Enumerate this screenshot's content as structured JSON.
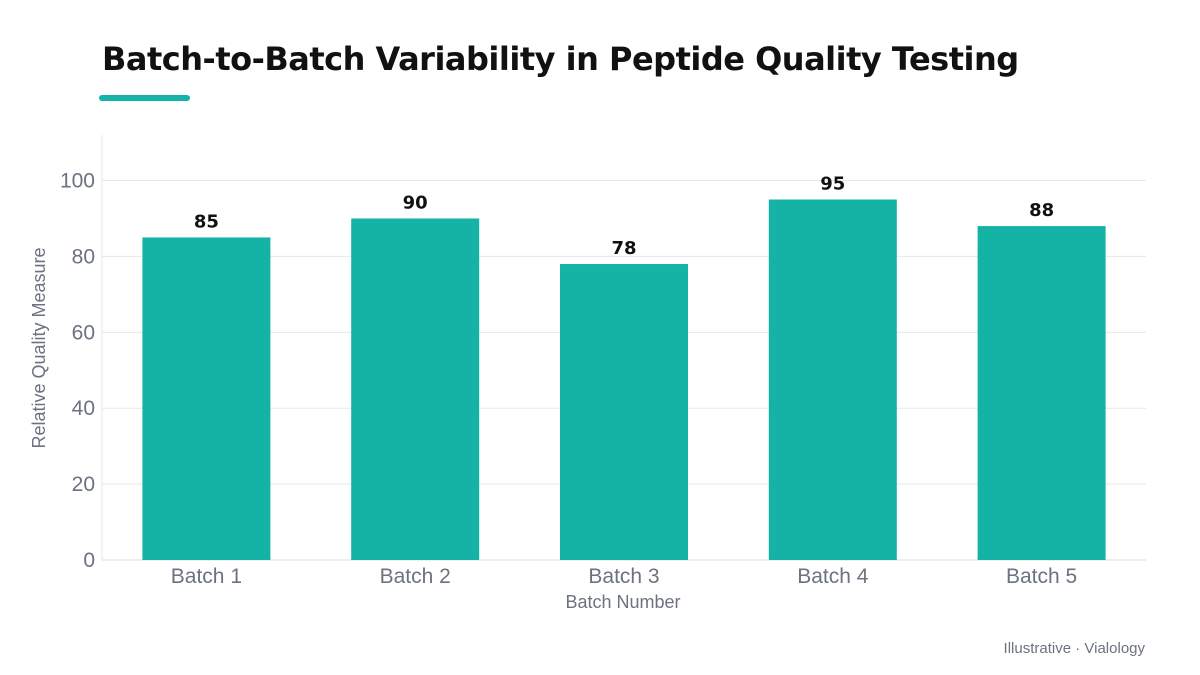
{
  "title": "Batch-to-Batch Variability in Peptide Quality Testing",
  "source": "Illustrative · Vialology",
  "colors": {
    "accent": "#14b3a6",
    "bar": "#14b3a6",
    "grid": "#e5e7eb",
    "axis_text": "#6b7280",
    "value_label": "#111111"
  },
  "chart_data": {
    "type": "bar",
    "categories": [
      "Batch 1",
      "Batch 2",
      "Batch 3",
      "Batch 4",
      "Batch 5"
    ],
    "values": [
      85,
      90,
      78,
      95,
      88
    ],
    "data_labels": [
      "85",
      "90",
      "78",
      "95",
      "88"
    ],
    "xlabel": "Batch Number",
    "ylabel": "Relative Quality Measure",
    "ylim": [
      0,
      112
    ],
    "yticks": [
      0,
      20,
      40,
      60,
      80,
      100
    ],
    "grid": true,
    "legend": "none"
  }
}
